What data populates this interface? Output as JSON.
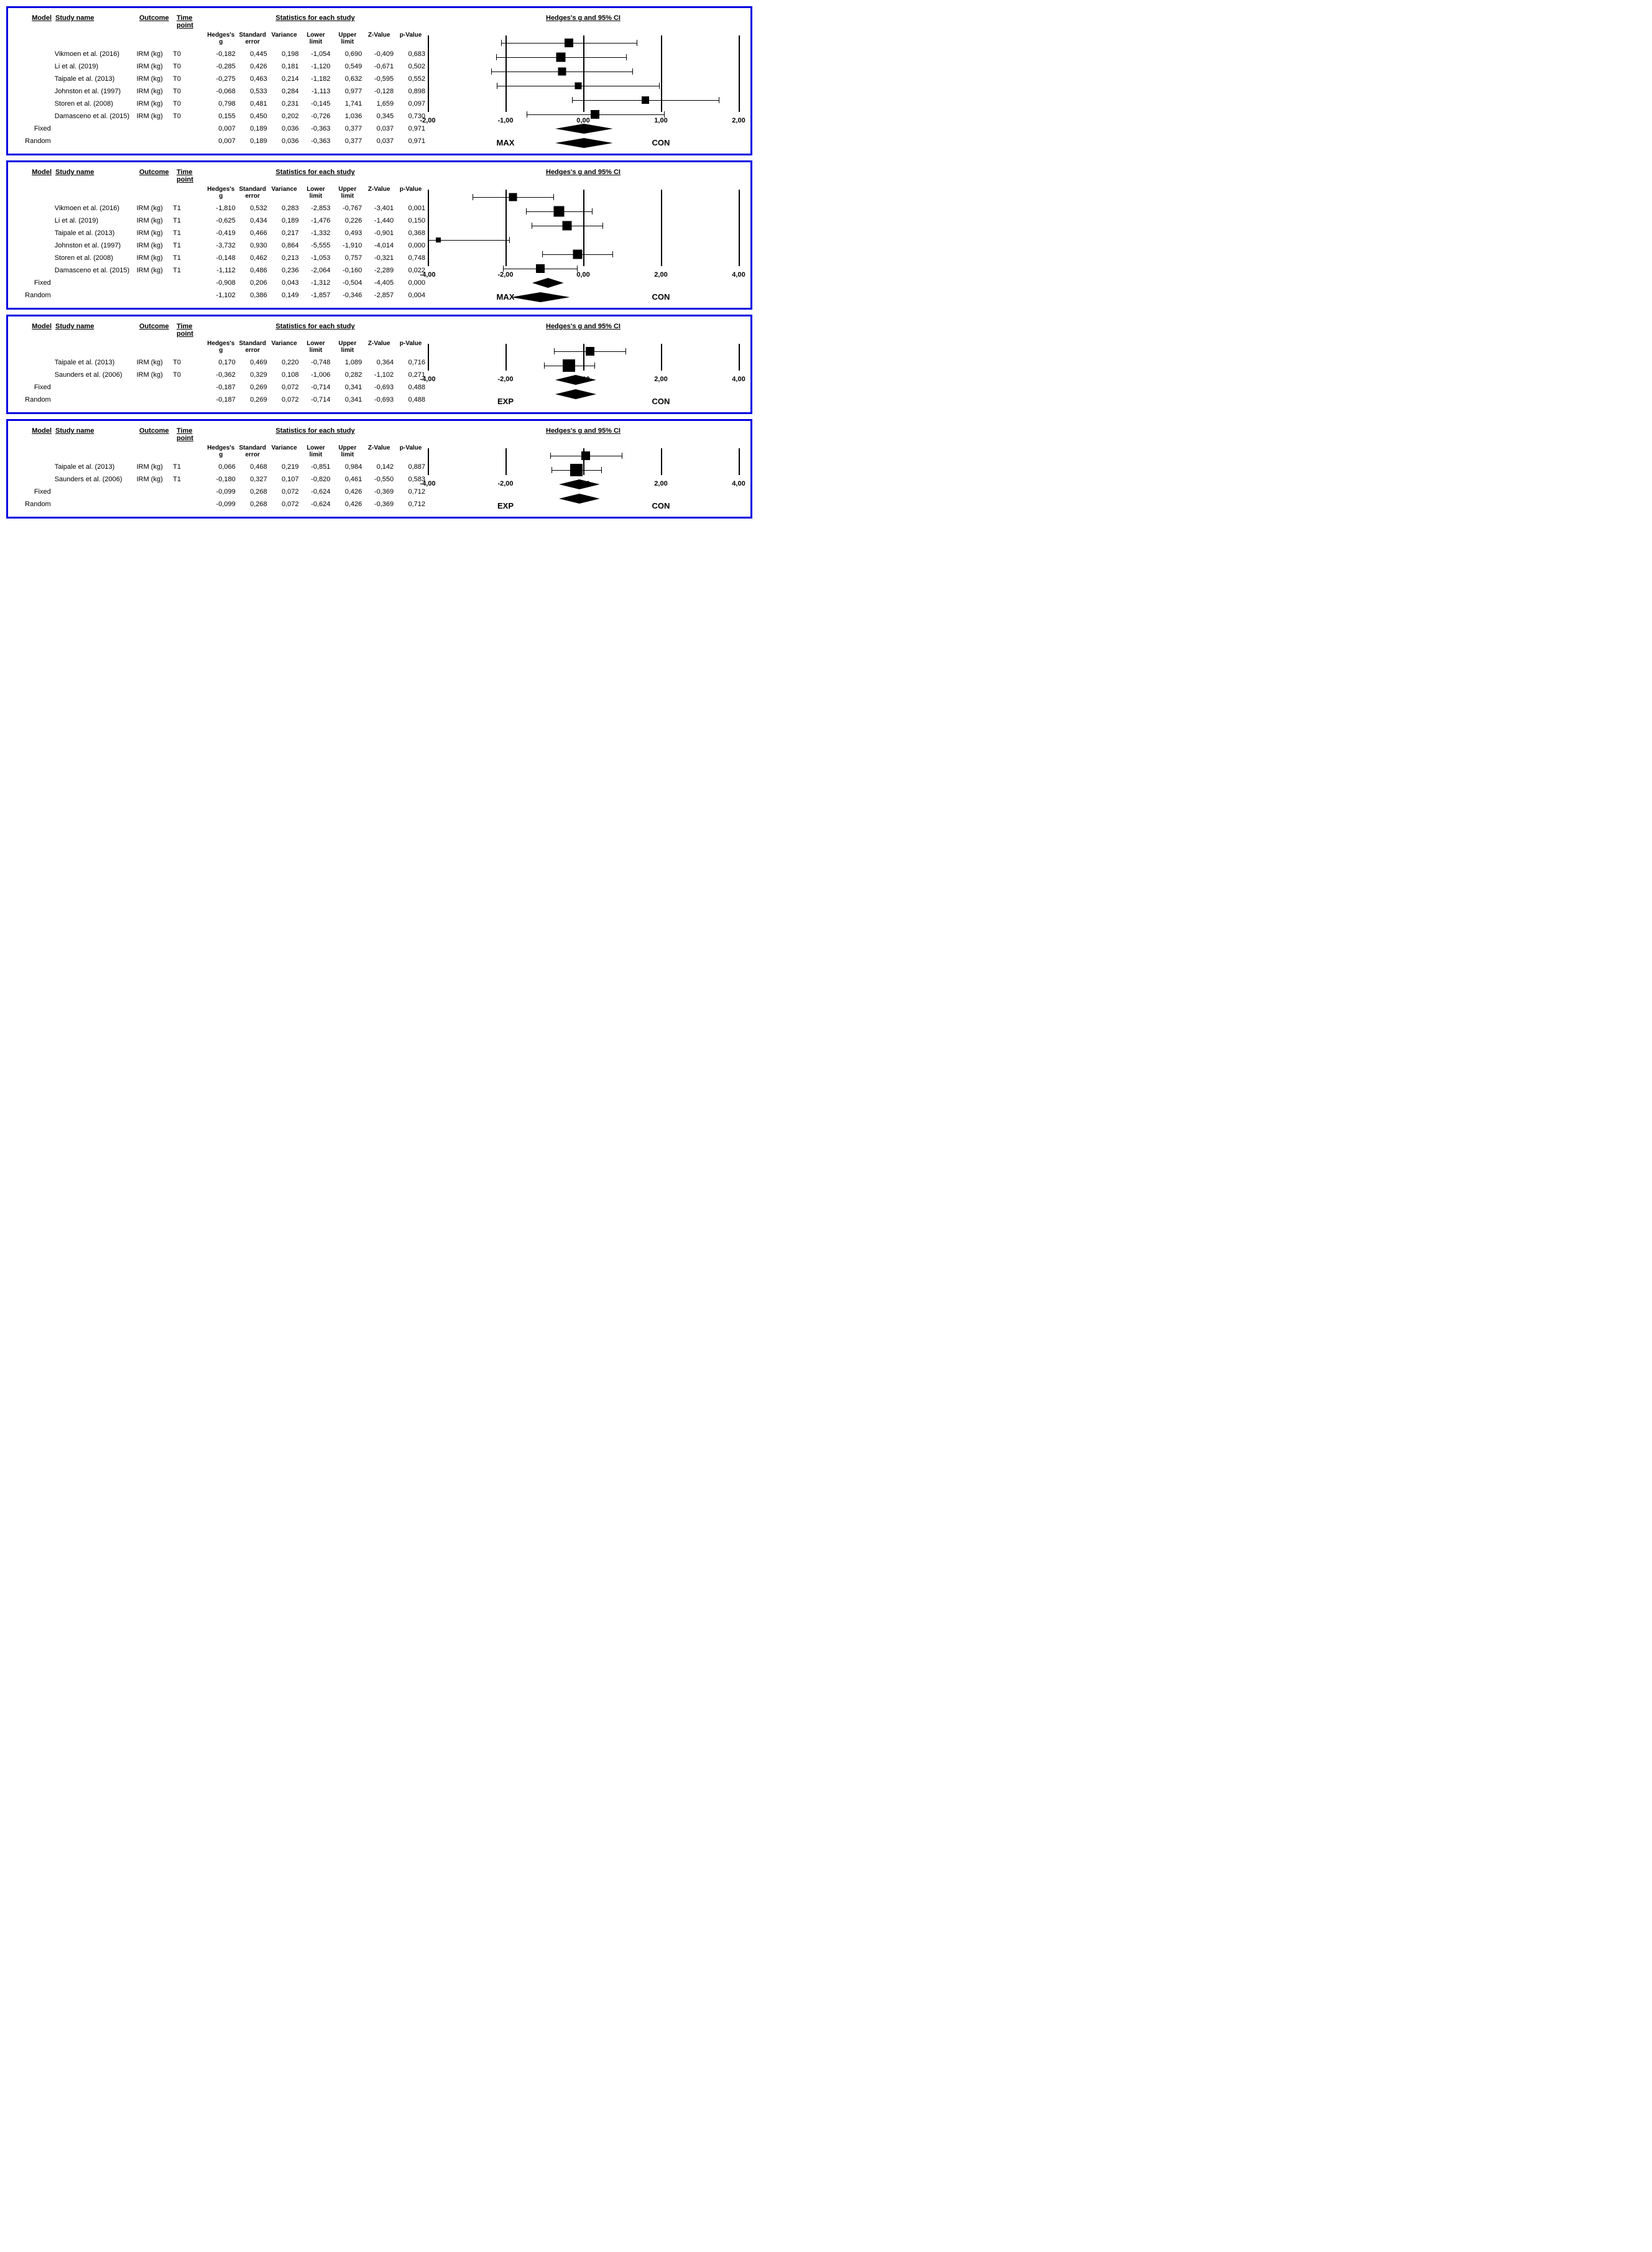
{
  "global": {
    "col_model": "Model",
    "col_study": "Study name",
    "col_outcome": "Outcome",
    "col_time": "Time point",
    "stats_header": "Statistics for each study",
    "forest_header": "Hedges's g and 95% CI",
    "sub_hedges": "Hedges's g",
    "sub_stderr": "Standard error",
    "sub_var": "Variance",
    "sub_low": "Lower limit",
    "sub_up": "Upper limit",
    "sub_z": "Z-Value",
    "sub_p": "p-Value",
    "border_color": "#0000e0",
    "text_color": "#000000",
    "font_size_pt": 11
  },
  "panels": [
    {
      "id": "p1",
      "x_min": -2.0,
      "x_max": 2.0,
      "ticks": [
        "-2,00",
        "-1,00",
        "0,00",
        "1,00",
        "2,00"
      ],
      "tick_vals": [
        -2,
        -1,
        0,
        1,
        2
      ],
      "group_left": "MAX",
      "group_right": "CON",
      "rows": [
        {
          "model": "",
          "study": "Vikmoen et al. (2016)",
          "outcome": "IRM (kg)",
          "time": "T0",
          "g": "-0,182",
          "se": "0,445",
          "var": "0,198",
          "lo": "-1,054",
          "hi": "0,690",
          "z": "-0,409",
          "p": "0,683",
          "gv": -0.182,
          "lov": -1.054,
          "hiv": 0.69,
          "type": "box",
          "w": 14
        },
        {
          "model": "",
          "study": "Li et al. (2019)",
          "outcome": "IRM (kg)",
          "time": "T0",
          "g": "-0,285",
          "se": "0,426",
          "var": "0,181",
          "lo": "-1,120",
          "hi": "0,549",
          "z": "-0,671",
          "p": "0,502",
          "gv": -0.285,
          "lov": -1.12,
          "hiv": 0.549,
          "type": "box",
          "w": 15
        },
        {
          "model": "",
          "study": "Taipale et al. (2013)",
          "outcome": "IRM (kg)",
          "time": "T0",
          "g": "-0,275",
          "se": "0,463",
          "var": "0,214",
          "lo": "-1,182",
          "hi": "0,632",
          "z": "-0,595",
          "p": "0,552",
          "gv": -0.275,
          "lov": -1.182,
          "hiv": 0.632,
          "type": "box",
          "w": 13
        },
        {
          "model": "",
          "study": "Johnston et al. (1997)",
          "outcome": "IRM (kg)",
          "time": "T0",
          "g": "-0,068",
          "se": "0,533",
          "var": "0,284",
          "lo": "-1,113",
          "hi": "0,977",
          "z": "-0,128",
          "p": "0,898",
          "gv": -0.068,
          "lov": -1.113,
          "hiv": 0.977,
          "type": "box",
          "w": 11
        },
        {
          "model": "",
          "study": "Storen et al. (2008)",
          "outcome": "IRM (kg)",
          "time": "T0",
          "g": "0,798",
          "se": "0,481",
          "var": "0,231",
          "lo": "-0,145",
          "hi": "1,741",
          "z": "1,659",
          "p": "0,097",
          "gv": 0.798,
          "lov": -0.145,
          "hiv": 1.741,
          "type": "box",
          "w": 12
        },
        {
          "model": "",
          "study": "Damasceno et al. (2015)",
          "outcome": "IRM (kg)",
          "time": "T0",
          "g": "0,155",
          "se": "0,450",
          "var": "0,202",
          "lo": "-0,726",
          "hi": "1,036",
          "z": "0,345",
          "p": "0,730",
          "gv": 0.155,
          "lov": -0.726,
          "hiv": 1.036,
          "type": "box",
          "w": 14
        },
        {
          "model": "Fixed",
          "study": "",
          "outcome": "",
          "time": "",
          "g": "0,007",
          "se": "0,189",
          "var": "0,036",
          "lo": "-0,363",
          "hi": "0,377",
          "z": "0,037",
          "p": "0,971",
          "gv": 0.007,
          "lov": -0.363,
          "hiv": 0.377,
          "type": "diamond",
          "w": 0
        },
        {
          "model": "Random",
          "study": "",
          "outcome": "",
          "time": "",
          "g": "0,007",
          "se": "0,189",
          "var": "0,036",
          "lo": "-0,363",
          "hi": "0,377",
          "z": "0,037",
          "p": "0,971",
          "gv": 0.007,
          "lov": -0.363,
          "hiv": 0.377,
          "type": "diamond",
          "w": 0
        }
      ]
    },
    {
      "id": "p2",
      "x_min": -4.0,
      "x_max": 4.0,
      "ticks": [
        "-4,00",
        "-2,00",
        "0,00",
        "2,00",
        "4,00"
      ],
      "tick_vals": [
        -4,
        -2,
        0,
        2,
        4
      ],
      "group_left": "MAX",
      "group_right": "CON",
      "rows": [
        {
          "model": "",
          "study": "Vikmoen et al. (2016)",
          "outcome": "IRM (kg)",
          "time": "T1",
          "g": "-1,810",
          "se": "0,532",
          "var": "0,283",
          "lo": "-2,853",
          "hi": "-0,767",
          "z": "-3,401",
          "p": "0,001",
          "gv": -1.81,
          "lov": -2.853,
          "hiv": -0.767,
          "type": "box",
          "w": 13
        },
        {
          "model": "",
          "study": "Li et al. (2019)",
          "outcome": "IRM (kg)",
          "time": "T1",
          "g": "-0,625",
          "se": "0,434",
          "var": "0,189",
          "lo": "-1,476",
          "hi": "0,226",
          "z": "-1,440",
          "p": "0,150",
          "gv": -0.625,
          "lov": -1.476,
          "hiv": 0.226,
          "type": "box",
          "w": 17
        },
        {
          "model": "",
          "study": "Taipale et al. (2013)",
          "outcome": "IRM (kg)",
          "time": "T1",
          "g": "-0,419",
          "se": "0,466",
          "var": "0,217",
          "lo": "-1,332",
          "hi": "0,493",
          "z": "-0,901",
          "p": "0,368",
          "gv": -0.419,
          "lov": -1.332,
          "hiv": 0.493,
          "type": "box",
          "w": 15
        },
        {
          "model": "",
          "study": "Johnston et al. (1997)",
          "outcome": "IRM (kg)",
          "time": "T1",
          "g": "-3,732",
          "se": "0,930",
          "var": "0,864",
          "lo": "-5,555",
          "hi": "-1,910",
          "z": "-4,014",
          "p": "0,000",
          "gv": -3.732,
          "lov": -5.555,
          "hiv": -1.91,
          "type": "box",
          "w": 8
        },
        {
          "model": "",
          "study": "Storen et al. (2008)",
          "outcome": "IRM (kg)",
          "time": "T1",
          "g": "-0,148",
          "se": "0,462",
          "var": "0,213",
          "lo": "-1,053",
          "hi": "0,757",
          "z": "-0,321",
          "p": "0,748",
          "gv": -0.148,
          "lov": -1.053,
          "hiv": 0.757,
          "type": "box",
          "w": 15
        },
        {
          "model": "",
          "study": "Damasceno et al. (2015)",
          "outcome": "IRM (kg)",
          "time": "T1",
          "g": "-1,112",
          "se": "0,486",
          "var": "0,236",
          "lo": "-2,064",
          "hi": "-0,160",
          "z": "-2,289",
          "p": "0,022",
          "gv": -1.112,
          "lov": -2.064,
          "hiv": -0.16,
          "type": "box",
          "w": 14
        },
        {
          "model": "Fixed",
          "study": "",
          "outcome": "",
          "time": "",
          "g": "-0,908",
          "se": "0,206",
          "var": "0,043",
          "lo": "-1,312",
          "hi": "-0,504",
          "z": "-4,405",
          "p": "0,000",
          "gv": -0.908,
          "lov": -1.312,
          "hiv": -0.504,
          "type": "diamond",
          "w": 0
        },
        {
          "model": "Random",
          "study": "",
          "outcome": "",
          "time": "",
          "g": "-1,102",
          "se": "0,386",
          "var": "0,149",
          "lo": "-1,857",
          "hi": "-0,346",
          "z": "-2,857",
          "p": "0,004",
          "gv": -1.102,
          "lov": -1.857,
          "hiv": -0.346,
          "type": "diamond",
          "w": 0
        }
      ]
    },
    {
      "id": "p3",
      "x_min": -4.0,
      "x_max": 4.0,
      "ticks": [
        "-4,00",
        "-2,00",
        "0,00",
        "2,00",
        "4,00"
      ],
      "tick_vals": [
        -4,
        -2,
        0,
        2,
        4
      ],
      "group_left": "EXP",
      "group_right": "CON",
      "rows": [
        {
          "model": "",
          "study": "Taipale et al. (2013)",
          "outcome": "IRM (kg)",
          "time": "T0",
          "g": "0,170",
          "se": "0,469",
          "var": "0,220",
          "lo": "-0,748",
          "hi": "1,089",
          "z": "0,364",
          "p": "0,716",
          "gv": 0.17,
          "lov": -0.748,
          "hiv": 1.089,
          "type": "box",
          "w": 14
        },
        {
          "model": "",
          "study": "Saunders et al. (2006)",
          "outcome": "IRM (kg)",
          "time": "T0",
          "g": "-0,362",
          "se": "0,329",
          "var": "0,108",
          "lo": "-1,006",
          "hi": "0,282",
          "z": "-1,102",
          "p": "0,271",
          "gv": -0.362,
          "lov": -1.006,
          "hiv": 0.282,
          "type": "box",
          "w": 20
        },
        {
          "model": "Fixed",
          "study": "",
          "outcome": "",
          "time": "",
          "g": "-0,187",
          "se": "0,269",
          "var": "0,072",
          "lo": "-0,714",
          "hi": "0,341",
          "z": "-0,693",
          "p": "0,488",
          "gv": -0.187,
          "lov": -0.714,
          "hiv": 0.341,
          "type": "diamond",
          "w": 0
        },
        {
          "model": "Random",
          "study": "",
          "outcome": "",
          "time": "",
          "g": "-0,187",
          "se": "0,269",
          "var": "0,072",
          "lo": "-0,714",
          "hi": "0,341",
          "z": "-0,693",
          "p": "0,488",
          "gv": -0.187,
          "lov": -0.714,
          "hiv": 0.341,
          "type": "diamond",
          "w": 0
        }
      ]
    },
    {
      "id": "p4",
      "x_min": -4.0,
      "x_max": 4.0,
      "ticks": [
        "-4,00",
        "-2,00",
        "0,00",
        "2,00",
        "4,00"
      ],
      "tick_vals": [
        -4,
        -2,
        0,
        2,
        4
      ],
      "group_left": "EXP",
      "group_right": "CON",
      "rows": [
        {
          "model": "",
          "study": "Taipale et al. (2013)",
          "outcome": "IRM (kg)",
          "time": "T1",
          "g": "0,066",
          "se": "0,468",
          "var": "0,219",
          "lo": "-0,851",
          "hi": "0,984",
          "z": "0,142",
          "p": "0,887",
          "gv": 0.066,
          "lov": -0.851,
          "hiv": 0.984,
          "type": "box",
          "w": 14
        },
        {
          "model": "",
          "study": "Saunders et al. (2006)",
          "outcome": "IRM (kg)",
          "time": "T1",
          "g": "-0,180",
          "se": "0,327",
          "var": "0,107",
          "lo": "-0,820",
          "hi": "0,461",
          "z": "-0,550",
          "p": "0,583",
          "gv": -0.18,
          "lov": -0.82,
          "hiv": 0.461,
          "type": "box",
          "w": 20
        },
        {
          "model": "Fixed",
          "study": "",
          "outcome": "",
          "time": "",
          "g": "-0,099",
          "se": "0,268",
          "var": "0,072",
          "lo": "-0,624",
          "hi": "0,426",
          "z": "-0,369",
          "p": "0,712",
          "gv": -0.099,
          "lov": -0.624,
          "hiv": 0.426,
          "type": "diamond",
          "w": 0
        },
        {
          "model": "Random",
          "study": "",
          "outcome": "",
          "time": "",
          "g": "-0,099",
          "se": "0,268",
          "var": "0,072",
          "lo": "-0,624",
          "hi": "0,426",
          "z": "-0,369",
          "p": "0,712",
          "gv": -0.099,
          "lov": -0.624,
          "hiv": 0.426,
          "type": "diamond",
          "w": 0
        }
      ]
    }
  ]
}
